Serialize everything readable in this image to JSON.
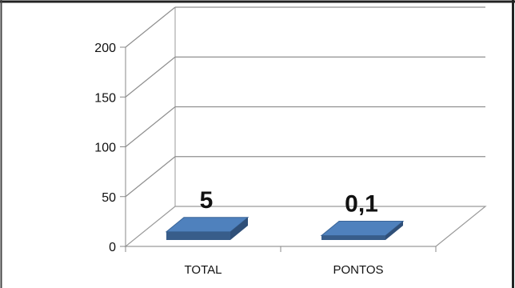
{
  "chart_data": {
    "type": "bar",
    "title": "",
    "xlabel": "",
    "ylabel": "",
    "categories": [
      "TOTAL",
      "PONTOS"
    ],
    "series": [
      {
        "values": [
          5,
          0.1
        ],
        "data_labels": [
          "5",
          "0,1"
        ],
        "color": "#3f6fab"
      }
    ],
    "ylim": [
      0,
      200
    ],
    "yticks": [
      "0",
      "50",
      "100",
      "150",
      "200"
    ],
    "grid": true,
    "style": "3d-bars",
    "legend": "none"
  }
}
